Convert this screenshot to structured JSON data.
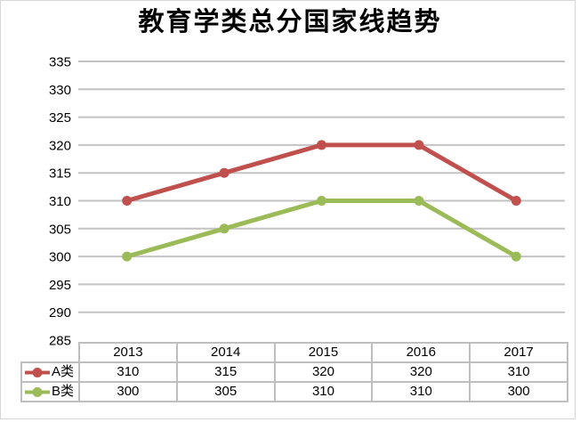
{
  "title": "教育学类总分国家线趋势",
  "colors": {
    "series_a": "#C0504D",
    "series_b": "#9BBB59",
    "gridline": "#C3C3C3",
    "table_border": "#BFBFBF",
    "frame_border": "#D6D6D6",
    "text": "#000000",
    "background": "#FFFFFF"
  },
  "chart_data": {
    "type": "line",
    "title": "教育学类总分国家线趋势",
    "categories": [
      "2013",
      "2014",
      "2015",
      "2016",
      "2017"
    ],
    "series": [
      {
        "name": "A类",
        "color": "#C0504D",
        "values": [
          310,
          315,
          320,
          320,
          310
        ]
      },
      {
        "name": "B类",
        "color": "#9BBB59",
        "values": [
          300,
          305,
          310,
          310,
          300
        ]
      }
    ],
    "xlabel": "",
    "ylabel": "",
    "ylim": [
      285,
      335
    ],
    "yticks": [
      335,
      330,
      325,
      320,
      315,
      310,
      305,
      300,
      295,
      290,
      285
    ],
    "grid": "horizontal",
    "legend_position": "data-table-left",
    "marker": "circle"
  }
}
